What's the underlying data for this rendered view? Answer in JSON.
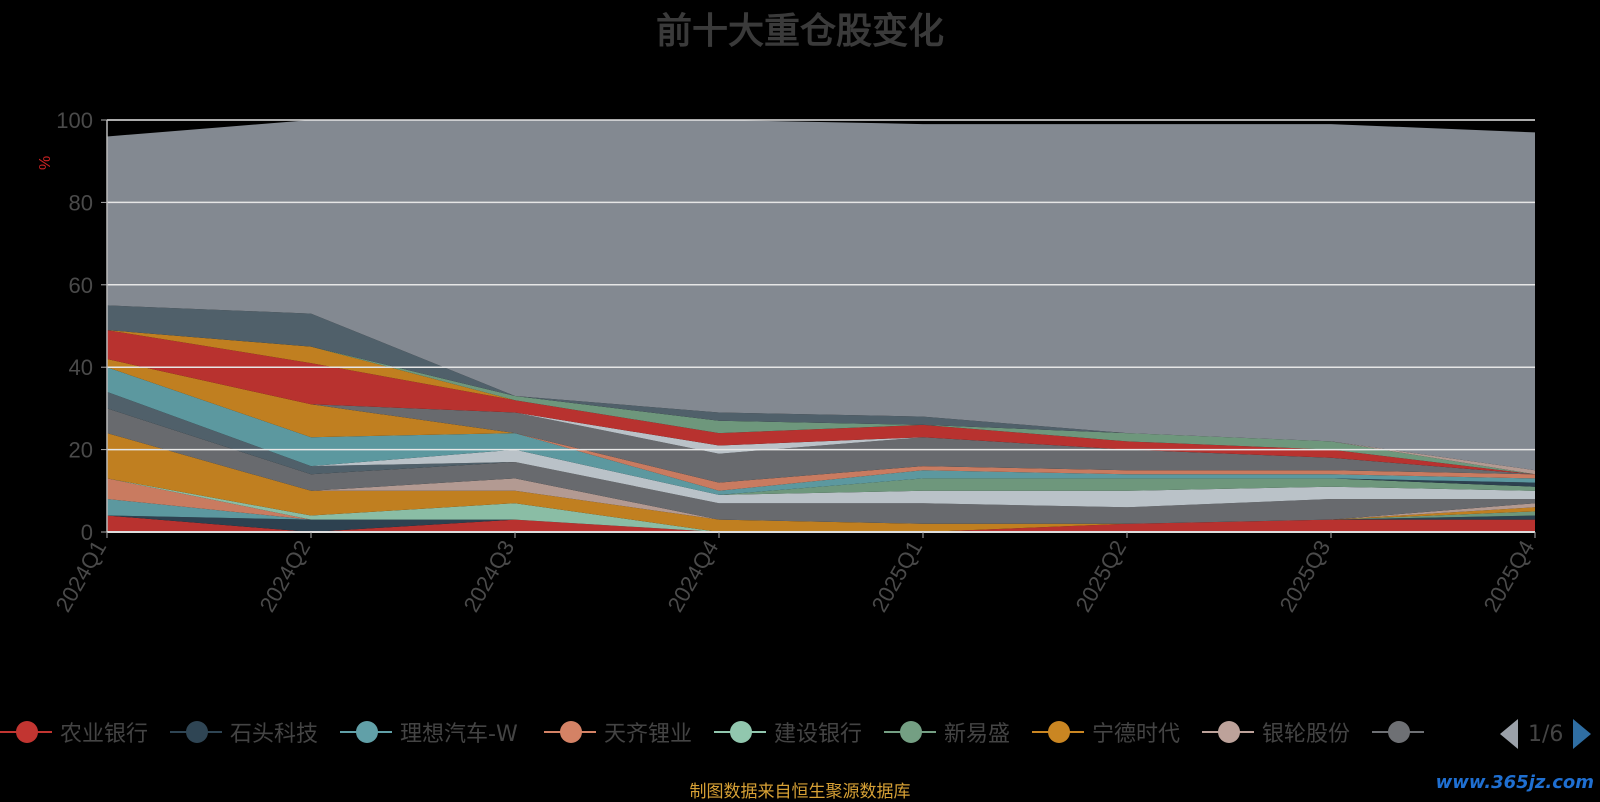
{
  "chart_data": {
    "type": "area",
    "title": "前十大重仓股变化",
    "ylabel": "%",
    "ylim": [
      0,
      100
    ],
    "yticks": [
      0,
      20,
      40,
      60,
      80,
      100
    ],
    "stacked": true,
    "grid": true,
    "x": [
      "2024Q1",
      "2024Q2",
      "2024Q3",
      "2024Q4",
      "2025Q1",
      "2025Q2",
      "2025Q3",
      "2025Q4"
    ],
    "bands": [
      {
        "color": "#c23531",
        "values": [
          4,
          0,
          3,
          0,
          0,
          2,
          3,
          3
        ]
      },
      {
        "color": "#2f4554",
        "values": [
          0,
          3,
          0,
          0,
          0,
          0,
          0,
          1
        ]
      },
      {
        "color": "#61a0a8",
        "values": [
          4,
          0,
          0,
          0,
          0,
          0,
          0,
          0
        ]
      },
      {
        "color": "#d48265",
        "values": [
          5,
          0,
          0,
          0,
          0,
          0,
          0,
          0
        ]
      },
      {
        "color": "#91c7ae",
        "values": [
          0,
          1,
          4,
          0,
          0,
          0,
          0,
          0
        ]
      },
      {
        "color": "#749f83",
        "values": [
          0,
          0,
          0,
          0,
          0,
          0,
          0,
          1
        ]
      },
      {
        "color": "#ca8622",
        "values": [
          11,
          6,
          3,
          3,
          2,
          0,
          0,
          1
        ]
      },
      {
        "color": "#bda29a",
        "values": [
          0,
          0,
          3,
          0,
          0,
          0,
          0,
          1
        ]
      },
      {
        "color": "#6e7074",
        "values": [
          6,
          4,
          4,
          4,
          5,
          4,
          5,
          1
        ]
      },
      {
        "color": "#546570",
        "values": [
          4,
          2,
          0,
          0,
          0,
          0,
          0,
          0
        ]
      },
      {
        "color": "#c4ccd3",
        "values": [
          0,
          0,
          3,
          2,
          3,
          4,
          3,
          2
        ]
      },
      {
        "color": "#749f83",
        "values": [
          0,
          0,
          0,
          0,
          3,
          3,
          2,
          1
        ]
      },
      {
        "color": "#2f4554",
        "values": [
          0,
          0,
          0,
          0,
          0,
          0,
          0,
          1
        ]
      },
      {
        "color": "#61a0a8",
        "values": [
          6,
          7,
          4,
          1,
          2,
          1,
          1,
          1
        ]
      },
      {
        "color": "#d48265",
        "values": [
          0,
          0,
          0,
          2,
          1,
          1,
          1,
          1
        ]
      },
      {
        "color": "#ca8622",
        "values": [
          2,
          8,
          0,
          0,
          0,
          0,
          0,
          0
        ]
      },
      {
        "color": "#6e7074",
        "values": [
          0,
          0,
          5,
          7,
          7,
          5,
          3,
          0
        ]
      },
      {
        "color": "#c4ccd3",
        "values": [
          0,
          0,
          0,
          2,
          0,
          0,
          0,
          0
        ]
      },
      {
        "color": "#c23531",
        "values": [
          7,
          10,
          3,
          3,
          3,
          2,
          2,
          0
        ]
      },
      {
        "color": "#ca8622",
        "values": [
          0,
          4,
          0,
          0,
          0,
          0,
          0,
          0
        ]
      },
      {
        "color": "#749f83",
        "values": [
          0,
          0,
          1,
          3,
          0,
          2,
          2,
          0
        ]
      },
      {
        "color": "#bda29a",
        "values": [
          0,
          0,
          0,
          0,
          0,
          0,
          0,
          1
        ]
      },
      {
        "color": "#546570",
        "values": [
          6,
          8,
          0,
          2,
          2,
          0,
          0,
          0
        ]
      },
      {
        "color": "#8a9099",
        "values": [
          41,
          47,
          67,
          71,
          71,
          75,
          77,
          82
        ]
      }
    ]
  },
  "legend": {
    "items": [
      {
        "label": "农业银行",
        "color": "#c23531"
      },
      {
        "label": "石头科技",
        "color": "#2f4554"
      },
      {
        "label": "理想汽车-W",
        "color": "#61a0a8"
      },
      {
        "label": "天齐锂业",
        "color": "#d48265"
      },
      {
        "label": "建设银行",
        "color": "#91c7ae"
      },
      {
        "label": "新易盛",
        "color": "#749f83"
      },
      {
        "label": "宁德时代",
        "color": "#ca8622"
      },
      {
        "label": "银轮股份",
        "color": "#bda29a"
      },
      {
        "label": "",
        "color": "#6e7074"
      }
    ],
    "page": "1/6"
  },
  "source_note": "制图数据来自恒生聚源数据库",
  "watermark": "www.365jz.com"
}
